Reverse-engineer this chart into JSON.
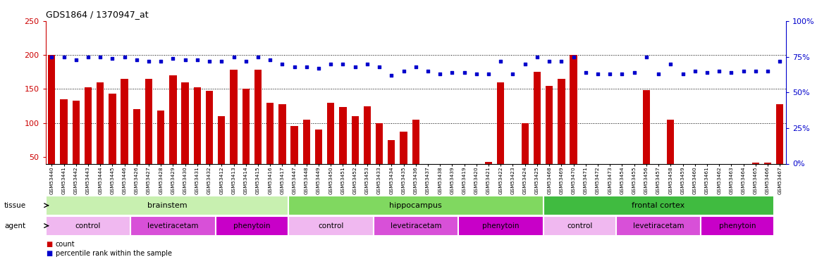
{
  "title": "GDS1864 / 1370947_at",
  "samples": [
    "GSM53440",
    "GSM53441",
    "GSM53442",
    "GSM53443",
    "GSM53444",
    "GSM53445",
    "GSM53446",
    "GSM53426",
    "GSM53427",
    "GSM53428",
    "GSM53429",
    "GSM53430",
    "GSM53431",
    "GSM53432",
    "GSM53412",
    "GSM53413",
    "GSM53414",
    "GSM53415",
    "GSM53416",
    "GSM53417",
    "GSM53447",
    "GSM53448",
    "GSM53449",
    "GSM53450",
    "GSM53451",
    "GSM53452",
    "GSM53453",
    "GSM53433",
    "GSM53434",
    "GSM53435",
    "GSM53436",
    "GSM53437",
    "GSM53438",
    "GSM53439",
    "GSM53419",
    "GSM53420",
    "GSM53421",
    "GSM53422",
    "GSM53423",
    "GSM53424",
    "GSM53425",
    "GSM53468",
    "GSM53469",
    "GSM53470",
    "GSM53471",
    "GSM53472",
    "GSM53473",
    "GSM53454",
    "GSM53455",
    "GSM53456",
    "GSM53457",
    "GSM53458",
    "GSM53459",
    "GSM53460",
    "GSM53461",
    "GSM53462",
    "GSM53463",
    "GSM53464",
    "GSM53465",
    "GSM53466",
    "GSM53467"
  ],
  "counts": [
    200,
    135,
    133,
    152,
    160,
    143,
    165,
    120,
    165,
    118,
    170,
    160,
    153,
    147,
    110,
    178,
    150,
    178,
    130,
    128,
    95,
    105,
    90,
    130,
    124,
    110,
    125,
    100,
    75,
    87,
    105,
    20,
    35,
    38,
    21,
    20,
    43,
    160,
    38,
    100,
    175,
    155,
    165,
    200,
    20,
    18,
    20,
    18,
    20,
    148,
    18,
    105,
    18,
    27,
    20,
    20,
    18,
    18,
    42,
    42,
    128
  ],
  "percentile_ranks": [
    75,
    75,
    73,
    75,
    75,
    74,
    75,
    73,
    72,
    72,
    74,
    73,
    73,
    72,
    72,
    75,
    72,
    75,
    73,
    70,
    68,
    68,
    67,
    70,
    70,
    68,
    70,
    68,
    62,
    65,
    68,
    65,
    63,
    64,
    64,
    63,
    63,
    72,
    63,
    70,
    75,
    72,
    72,
    75,
    64,
    63,
    63,
    63,
    64,
    75,
    63,
    70,
    63,
    65,
    64,
    65,
    64,
    65,
    65,
    65,
    72
  ],
  "tissue_groups": [
    {
      "label": "brainstem",
      "start": 0,
      "end": 20,
      "color": "#c8f0b0"
    },
    {
      "label": "hippocampus",
      "start": 20,
      "end": 41,
      "color": "#80d860"
    },
    {
      "label": "frontal cortex",
      "start": 41,
      "end": 60,
      "color": "#40bb40"
    }
  ],
  "agent_groups": [
    {
      "label": "control",
      "start": 0,
      "end": 7,
      "color": "#f0b8f0"
    },
    {
      "label": "levetiracetam",
      "start": 7,
      "end": 14,
      "color": "#d850d8"
    },
    {
      "label": "phenytoin",
      "start": 14,
      "end": 20,
      "color": "#c800c8"
    },
    {
      "label": "control",
      "start": 20,
      "end": 27,
      "color": "#f0b8f0"
    },
    {
      "label": "levetiracetam",
      "start": 27,
      "end": 34,
      "color": "#d850d8"
    },
    {
      "label": "phenytoin",
      "start": 34,
      "end": 41,
      "color": "#c800c8"
    },
    {
      "label": "control",
      "start": 41,
      "end": 47,
      "color": "#f0b8f0"
    },
    {
      "label": "levetiracetam",
      "start": 47,
      "end": 54,
      "color": "#d850d8"
    },
    {
      "label": "phenytoin",
      "start": 54,
      "end": 60,
      "color": "#c800c8"
    }
  ],
  "ylim_left": [
    40,
    250
  ],
  "ylim_right": [
    0,
    100
  ],
  "yticks_left": [
    50,
    100,
    150,
    200,
    250
  ],
  "yticks_right": [
    0,
    25,
    50,
    75,
    100
  ],
  "bar_color": "#cc0000",
  "dot_color": "#0000cc",
  "title_color": "#000000",
  "left_axis_color": "#cc0000",
  "right_axis_color": "#0000cc",
  "grid_lines": [
    100,
    150,
    200
  ]
}
